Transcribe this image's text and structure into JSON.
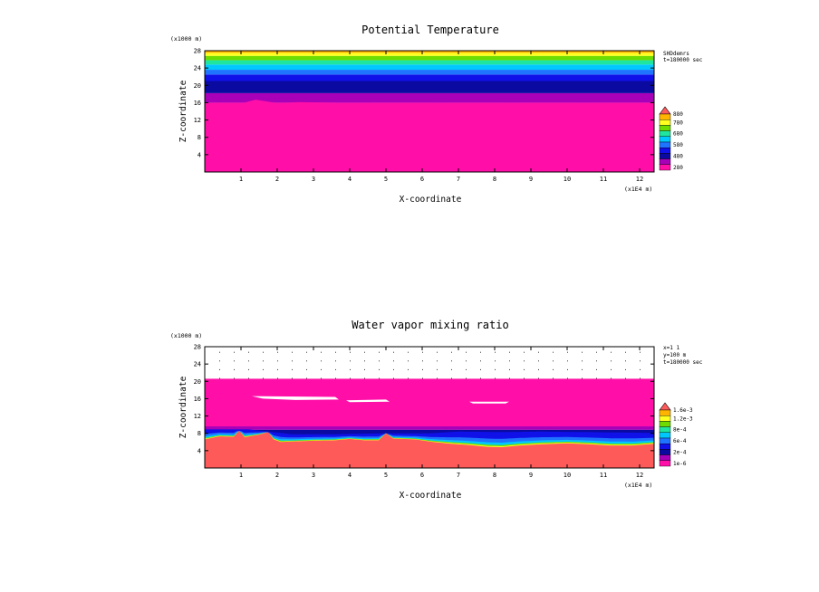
{
  "chart_data": [
    {
      "type": "heatmap",
      "title": "Potential Temperature",
      "xlabel": "X-coordinate",
      "ylabel": "Z-coordinate",
      "x_unit": "(x1E4 m)",
      "y_unit": "(x1000 m)",
      "xlim": [
        0,
        12.4
      ],
      "ylim": [
        0,
        28
      ],
      "x_ticks": [
        "1",
        "2",
        "3",
        "4",
        "5",
        "6",
        "7",
        "8",
        "9",
        "10",
        "11",
        "12"
      ],
      "y_ticks": [
        "4",
        "8",
        "12",
        "16",
        "20",
        "24",
        "28"
      ],
      "info": [
        "SHDdemrs",
        "t=180000 sec"
      ],
      "legend": [
        {
          "label": "280",
          "color": "#ff0fa8"
        },
        {
          "label": "",
          "color": "#a800b8"
        },
        {
          "label": "480",
          "color": "#0a0aa0"
        },
        {
          "label": "",
          "color": "#1010e8"
        },
        {
          "label": "580",
          "color": "#1e73ff"
        },
        {
          "label": "",
          "color": "#00c8ff"
        },
        {
          "label": "680",
          "color": "#1ee6a0"
        },
        {
          "label": "",
          "color": "#6edc00"
        },
        {
          "label": "780",
          "color": "#ffff20"
        },
        {
          "label": "",
          "color": "#ffb400"
        },
        {
          "label": "880",
          "color": "#ff5a5a"
        }
      ],
      "bands": [
        {
          "from": 0,
          "to": 16,
          "color": "#ff0fa8"
        },
        {
          "from": 16,
          "to": 18.2,
          "color": "#a800b8"
        },
        {
          "from": 18.2,
          "to": 21,
          "color": "#0a0aa0"
        },
        {
          "from": 21,
          "to": 22.5,
          "color": "#1010e8"
        },
        {
          "from": 22.5,
          "to": 23.6,
          "color": "#1e73ff"
        },
        {
          "from": 23.6,
          "to": 24.8,
          "color": "#00c8ff"
        },
        {
          "from": 24.8,
          "to": 25.8,
          "color": "#1ee6a0"
        },
        {
          "from": 25.8,
          "to": 26.8,
          "color": "#6edc00"
        },
        {
          "from": 26.8,
          "to": 27.5,
          "color": "#ffff20"
        },
        {
          "from": 27.5,
          "to": 28,
          "color": "#ffb400"
        }
      ],
      "pink_top": [
        [
          0,
          15.4
        ],
        [
          0.6,
          15.6
        ],
        [
          1.1,
          16.0
        ],
        [
          1.4,
          16.7
        ],
        [
          1.7,
          16.3
        ],
        [
          2.0,
          15.9
        ],
        [
          2.6,
          16.1
        ],
        [
          3.5,
          16.0
        ],
        [
          4.5,
          15.9
        ],
        [
          5.5,
          15.7
        ],
        [
          6.5,
          15.9
        ],
        [
          7.5,
          15.8
        ],
        [
          8.5,
          15.9
        ],
        [
          9.5,
          15.8
        ],
        [
          10.5,
          15.9
        ],
        [
          11.5,
          15.8
        ],
        [
          12.4,
          15.9
        ]
      ]
    },
    {
      "type": "heatmap",
      "title": "Water vapor mixing ratio",
      "xlabel": "X-coordinate",
      "ylabel": "Z-coordinate",
      "x_unit": "(x1E4 m)",
      "y_unit": "(x1000 m)",
      "xlim": [
        0,
        12.4
      ],
      "ylim": [
        0,
        28
      ],
      "x_ticks": [
        "1",
        "2",
        "3",
        "4",
        "5",
        "6",
        "7",
        "8",
        "9",
        "10",
        "11",
        "12"
      ],
      "y_ticks": [
        "4",
        "8",
        "12",
        "16",
        "20",
        "24",
        "28"
      ],
      "info": [
        "x=1 1",
        "y=100 m",
        "t=180000 sec"
      ],
      "legend": [
        {
          "label": "1e-6",
          "color": "#ff0fa8"
        },
        {
          "label": "",
          "color": "#a800b8"
        },
        {
          "label": "2e-4",
          "color": "#0a0aa0"
        },
        {
          "label": "",
          "color": "#1010e8"
        },
        {
          "label": "6e-4",
          "color": "#1e73ff"
        },
        {
          "label": "",
          "color": "#00c8ff"
        },
        {
          "label": "8e-4",
          "color": "#1ee6a0"
        },
        {
          "label": "",
          "color": "#6edc00"
        },
        {
          "label": "1.2e-3",
          "color": "#ffff20"
        },
        {
          "label": "",
          "color": "#ffb400"
        },
        {
          "label": "1.6e-3",
          "color": "#ff5a5a"
        }
      ],
      "pink_band": [
        9.5,
        20.6
      ],
      "white_patches": [
        [
          [
            1.3,
            16.6
          ],
          [
            3.6,
            16.4
          ],
          [
            3.7,
            15.8
          ],
          [
            2.5,
            15.7
          ],
          [
            1.6,
            16.0
          ]
        ],
        [
          [
            3.9,
            15.6
          ],
          [
            5.0,
            15.8
          ],
          [
            5.1,
            15.3
          ],
          [
            4.0,
            15.2
          ]
        ],
        [
          [
            7.3,
            15.3
          ],
          [
            8.4,
            15.3
          ],
          [
            8.3,
            14.9
          ],
          [
            7.4,
            14.9
          ]
        ]
      ],
      "dark_band": [
        8.8,
        9.6
      ],
      "surface": [
        [
          0,
          6.6
        ],
        [
          0.4,
          7.3
        ],
        [
          0.8,
          7.2
        ],
        [
          0.95,
          8.6
        ],
        [
          1.1,
          7.1
        ],
        [
          1.5,
          7.7
        ],
        [
          1.75,
          8.3
        ],
        [
          1.9,
          6.6
        ],
        [
          2.1,
          6.0
        ],
        [
          2.4,
          6.1
        ],
        [
          3.0,
          6.3
        ],
        [
          3.6,
          6.4
        ],
        [
          4.0,
          6.7
        ],
        [
          4.4,
          6.4
        ],
        [
          4.8,
          6.4
        ],
        [
          5.0,
          8.0
        ],
        [
          5.2,
          6.8
        ],
        [
          5.8,
          6.6
        ],
        [
          6.3,
          6.0
        ],
        [
          6.8,
          5.6
        ],
        [
          7.3,
          5.3
        ],
        [
          7.8,
          4.9
        ],
        [
          8.2,
          4.8
        ],
        [
          8.7,
          5.2
        ],
        [
          9.3,
          5.5
        ],
        [
          10.0,
          5.7
        ],
        [
          10.6,
          5.5
        ],
        [
          11.2,
          5.2
        ],
        [
          11.8,
          5.2
        ],
        [
          12.4,
          5.6
        ]
      ],
      "moist_layer": [
        [
          0,
          8.9
        ],
        [
          1.2,
          8.9
        ],
        [
          2.4,
          7.8
        ],
        [
          3.6,
          7.8
        ],
        [
          5.0,
          8.0
        ],
        [
          6.2,
          8.0
        ],
        [
          7.0,
          8.4
        ],
        [
          8.2,
          8.3
        ],
        [
          9.3,
          8.4
        ],
        [
          10.4,
          8.3
        ],
        [
          11.4,
          8.2
        ],
        [
          12.4,
          8.1
        ]
      ],
      "dot_rows": [
        20.8,
        22.8,
        24.8,
        26.8
      ]
    }
  ]
}
